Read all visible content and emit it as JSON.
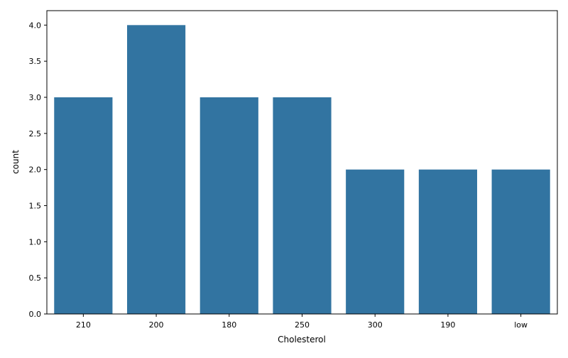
{
  "chart_data": {
    "type": "bar",
    "title": "",
    "xlabel": "Cholesterol",
    "ylabel": "count",
    "categories": [
      "210",
      "200",
      "180",
      "250",
      "300",
      "190",
      "low"
    ],
    "values": [
      3,
      4,
      3,
      3,
      2,
      2,
      2
    ],
    "ylim": [
      0,
      4.2
    ],
    "yticks": [
      0.0,
      0.5,
      1.0,
      1.5,
      2.0,
      2.5,
      3.0,
      3.5,
      4.0
    ],
    "ytick_labels": [
      "0.0",
      "0.5",
      "1.0",
      "1.5",
      "2.0",
      "2.5",
      "3.0",
      "3.5",
      "4.0"
    ],
    "bar_color": "#3274a1",
    "grid": false,
    "legend": "none"
  }
}
